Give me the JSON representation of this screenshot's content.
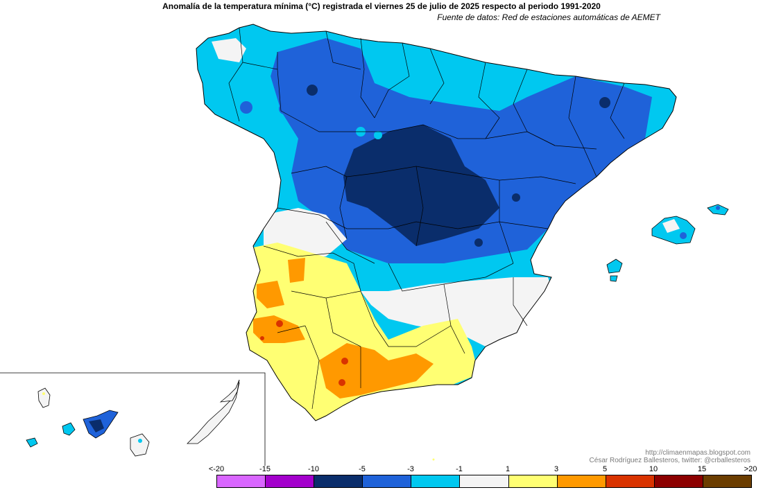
{
  "title": "Anomalía de la temperatura mínima (°C) registrada el viernes 25 de julio de 2025 respecto al periodo 1991-2020",
  "subtitle": "Fuente de datos: Red de estaciones automáticas de AEMET",
  "credits": {
    "url": "http://climaenmapas.blogspot.com",
    "author": "César Rodríguez Ballesteros, twitter: @crballesteros"
  },
  "legend": {
    "ticks": [
      "<-20",
      "-15",
      "-10",
      "-5",
      "-3",
      "-1",
      "1",
      "3",
      "5",
      "10",
      "15",
      ">20"
    ],
    "colors": [
      "#d966ff",
      "#a300cc",
      "#0a2d6b",
      "#1f62d9",
      "#00c8f0",
      "#f4f4f4",
      "#ffff73",
      "#ff9900",
      "#d93300",
      "#8c0000",
      "#6b3d00"
    ]
  },
  "regions": [
    {
      "id": "noroeste-galicia",
      "anomaly_class": "-3 a -1",
      "color": "#00c8f0"
    },
    {
      "id": "meseta-central",
      "anomaly_class": "-10 a -5",
      "color": "#0a2d6b"
    },
    {
      "id": "norte-noreste",
      "anomaly_class": "-5 a -3",
      "color": "#1f62d9"
    },
    {
      "id": "levante-sureste",
      "anomaly_class": "-1 a 1",
      "color": "#f4f4f4"
    },
    {
      "id": "andalucia-occidental",
      "anomaly_class": "1 a 3",
      "color": "#ffff73"
    },
    {
      "id": "guadalquivir-malaga",
      "anomaly_class": "3 a 5",
      "color": "#ff9900"
    },
    {
      "id": "puntos-calidos",
      "anomaly_class": "5 a 10",
      "color": "#d93300"
    },
    {
      "id": "baleares",
      "anomaly_class": "-3 a -1",
      "color": "#00c8f0"
    },
    {
      "id": "canarias",
      "anomaly_class": "-1 a 1",
      "color": "#f4f4f4"
    }
  ]
}
